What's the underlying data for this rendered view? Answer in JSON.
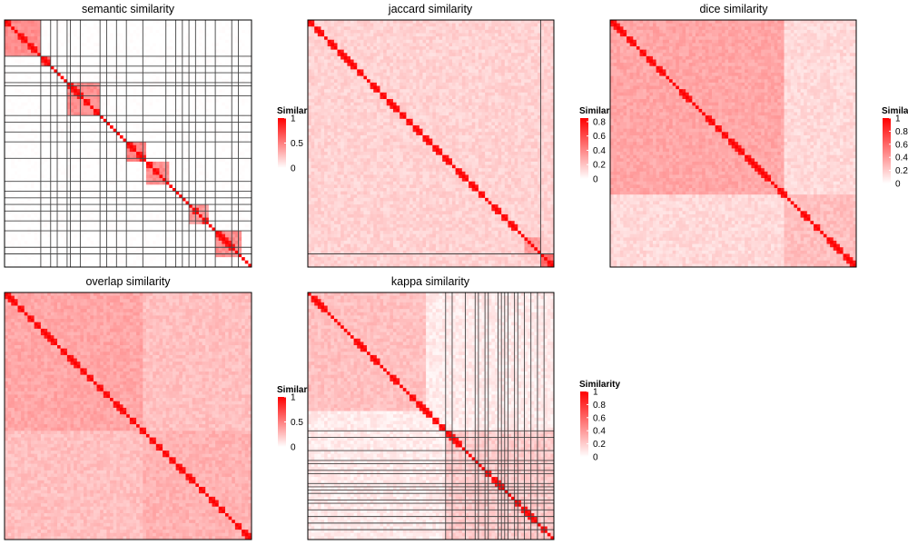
{
  "chart_data": [
    {
      "type": "heatmap",
      "title": "semantic similarity",
      "legend": {
        "title": "Similarity",
        "ticks": [
          1,
          0.5,
          0
        ],
        "tick_labels": [
          "1",
          "0.5",
          "0"
        ]
      },
      "value_range": [
        0,
        1
      ],
      "n_terms": 75,
      "blocks": [
        {
          "start": 1,
          "end": 11,
          "value": 0.45
        },
        {
          "start": 12,
          "end": 14,
          "value": 0.6
        },
        {
          "start": 20,
          "end": 29,
          "value": 0.45
        },
        {
          "start": 38,
          "end": 43,
          "value": 0.5
        },
        {
          "start": 44,
          "end": 50,
          "value": 0.45
        },
        {
          "start": 57,
          "end": 62,
          "value": 0.4
        },
        {
          "start": 65,
          "end": 72,
          "value": 0.45
        }
      ],
      "background_value": 0.05,
      "grid_boundaries": [
        12,
        15,
        17,
        20,
        21,
        24,
        30,
        32,
        35,
        38,
        43,
        50,
        53,
        55,
        57,
        59,
        62,
        65,
        70,
        72
      ]
    },
    {
      "type": "heatmap",
      "title": "jaccard similarity",
      "legend": {
        "title": "Similarity",
        "ticks": [
          0.8,
          0.6,
          0.4,
          0.2,
          0
        ],
        "tick_labels": [
          "0.8",
          "0.6",
          "0.4",
          "0.2",
          "0"
        ]
      },
      "value_range": [
        0,
        0.85
      ],
      "n_terms": 75,
      "blocks": [
        {
          "start": 67,
          "end": 71,
          "value": 0.35
        },
        {
          "start": 72,
          "end": 75,
          "value": 0.5
        }
      ],
      "background_value": 0.15,
      "grid_boundaries": [
        72
      ]
    },
    {
      "type": "heatmap",
      "title": "dice similarity",
      "legend": {
        "title": "Similarity",
        "ticks": [
          1,
          0.8,
          0.6,
          0.4,
          0.2,
          0
        ],
        "tick_labels": [
          "1",
          "0.8",
          "0.6",
          "0.4",
          "0.2",
          "0"
        ]
      },
      "value_range": [
        0,
        1
      ],
      "n_terms": 75,
      "blocks": [
        {
          "start": 1,
          "end": 53,
          "value": 0.35
        },
        {
          "start": 54,
          "end": 75,
          "value": 0.25
        }
      ],
      "background_value": 0.15,
      "grid_boundaries": []
    },
    {
      "type": "heatmap",
      "title": "overlap similarity",
      "legend": {
        "title": "Similarity",
        "ticks": [
          1,
          0.5,
          0
        ],
        "tick_labels": [
          "1",
          "0.5",
          "0"
        ]
      },
      "value_range": [
        0,
        1
      ],
      "n_terms": 75,
      "blocks": [
        {
          "start": 1,
          "end": 42,
          "value": 0.35
        },
        {
          "start": 43,
          "end": 75,
          "value": 0.3
        }
      ],
      "background_value": 0.25,
      "grid_boundaries": []
    },
    {
      "type": "heatmap",
      "title": "kappa similarity",
      "legend": {
        "title": "Similarity",
        "ticks": [
          1,
          0.8,
          0.6,
          0.4,
          0.2,
          0
        ],
        "tick_labels": [
          "1",
          "0.8",
          "0.6",
          "0.4",
          "0.2",
          "0"
        ]
      },
      "value_range": [
        0,
        1
      ],
      "n_terms": 75,
      "blocks": [
        {
          "start": 1,
          "end": 36,
          "value": 0.25
        },
        {
          "start": 43,
          "end": 75,
          "value": 0.2
        }
      ],
      "background_value": 0.08,
      "grid_boundaries": [
        43,
        45,
        49,
        52,
        53,
        55,
        56,
        59,
        60,
        61,
        62,
        64,
        65,
        67,
        69,
        71,
        73
      ]
    }
  ],
  "colors": {
    "low": "#ffffff",
    "high": "#ff0000",
    "border": "#000000",
    "grid_line": "#444444"
  }
}
